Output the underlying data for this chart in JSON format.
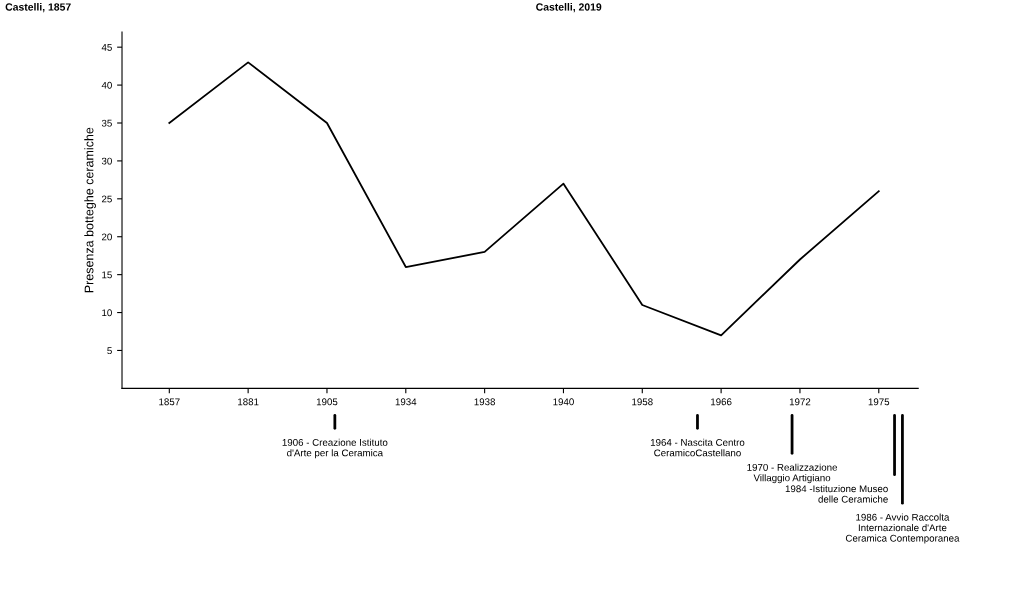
{
  "chart_data": {
    "type": "line",
    "ylabel": "Presenza botteghe ceramiche",
    "categories": [
      "1857",
      "1881",
      "1905",
      "1934",
      "1938",
      "1940",
      "1958",
      "1966",
      "1972",
      "1975"
    ],
    "series": [
      {
        "color": "#000000",
        "values": [
          35,
          43,
          35,
          16,
          18,
          27,
          11,
          7,
          17,
          26
        ]
      }
    ],
    "ylim": [
      0,
      47
    ],
    "yticks": [
      5,
      10,
      15,
      20,
      25,
      30,
      35,
      40,
      45
    ],
    "grid": false,
    "legend": false,
    "marker": "none",
    "line_style": "solid",
    "annotations": [
      "Castelli, 1857",
      "Castelli, 2019",
      "1906 - Creazione Istituto\nd'Arte per la Ceramica",
      "1964 - Nascita Centro\nCeramicoCastellano",
      "1970 - Realizzazione\nVillaggio Artigiano",
      "1984 -Istituzione Museo\ndelle Ceramiche",
      "1986 - Avvio Raccolta\nInternazionale d'Arte\nCeramica Contemporanea"
    ]
  }
}
